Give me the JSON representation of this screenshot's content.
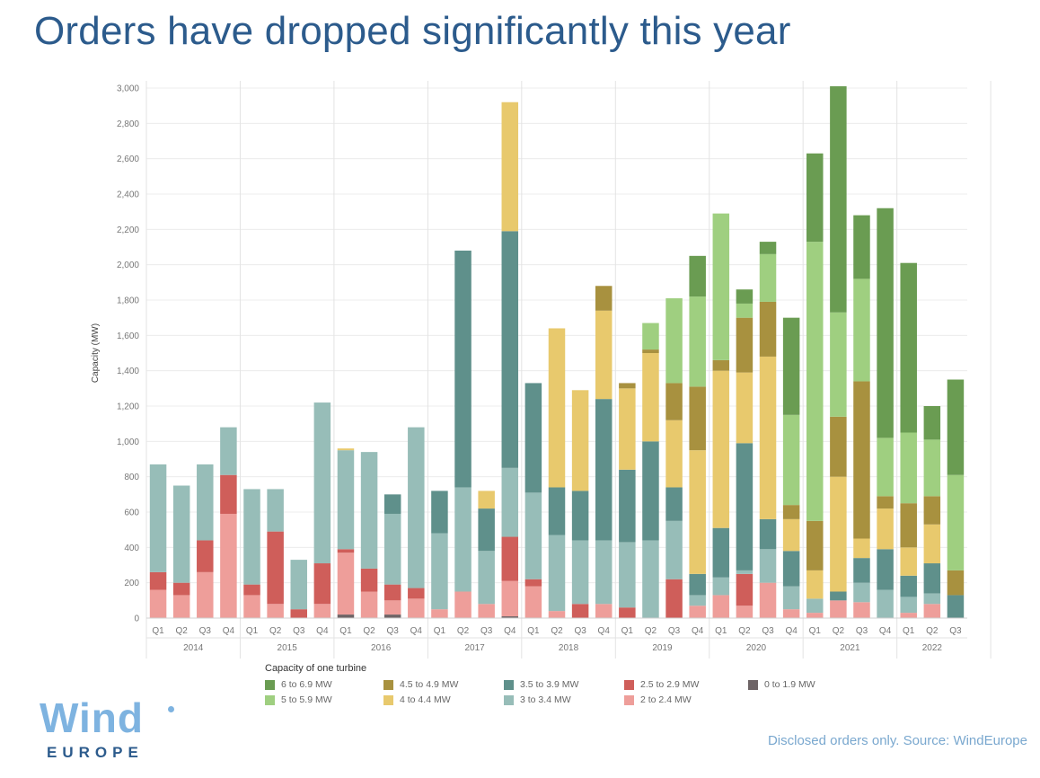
{
  "title": "Orders have dropped significantly this year",
  "legend": {
    "title": "Capacity of one turbine",
    "items": [
      {
        "label": "6 to 6.9 MW",
        "color": "#6a9c52"
      },
      {
        "label": "4.5 to 4.9 MW",
        "color": "#a8913f"
      },
      {
        "label": "3.5 to 3.9 MW",
        "color": "#5f908b"
      },
      {
        "label": "2.5 to 2.9 MW",
        "color": "#cf5e5a"
      },
      {
        "label": "0 to 1.9 MW",
        "color": "#6e6466"
      },
      {
        "label": "5 to 5.9 MW",
        "color": "#9fcf80"
      },
      {
        "label": "4 to 4.4 MW",
        "color": "#e8c96d"
      },
      {
        "label": "3 to 3.4 MW",
        "color": "#97bdb8"
      },
      {
        "label": "2 to 2.4 MW",
        "color": "#ee9e9a"
      }
    ]
  },
  "logo": {
    "word": "Wind",
    "sub": "EUROPE"
  },
  "source_note": "Disclosed orders only. Source: WindEurope",
  "chart_data": {
    "type": "bar",
    "stacked": true,
    "ylabel": "Capacity (MW)",
    "ylim": [
      0,
      3000
    ],
    "yticks": [
      "0",
      "200",
      "400",
      "600",
      "800",
      "1,000",
      "1,200",
      "1,400",
      "1,600",
      "1,800",
      "2,000",
      "2,200",
      "2,400",
      "2,600",
      "2,800",
      "3,000"
    ],
    "years": [
      "2014",
      "2015",
      "2016",
      "2017",
      "2018",
      "2019",
      "2020",
      "2021",
      "2022"
    ],
    "categories": [
      "Q1",
      "Q2",
      "Q3",
      "Q4",
      "Q1",
      "Q2",
      "Q3",
      "Q4",
      "Q1",
      "Q2",
      "Q3",
      "Q4",
      "Q1",
      "Q2",
      "Q3",
      "Q4",
      "Q1",
      "Q2",
      "Q3",
      "Q4",
      "Q1",
      "Q2",
      "Q3",
      "Q4",
      "Q1",
      "Q2",
      "Q3",
      "Q4",
      "Q1",
      "Q2",
      "Q3",
      "Q4",
      "Q1",
      "Q2",
      "Q3"
    ],
    "series": [
      {
        "name": "0 to 1.9 MW",
        "color": "#6e6466",
        "values": [
          0,
          0,
          0,
          0,
          0,
          0,
          0,
          0,
          20,
          0,
          20,
          0,
          0,
          0,
          0,
          10,
          0,
          0,
          0,
          0,
          0,
          0,
          0,
          0,
          0,
          0,
          0,
          0,
          0,
          0,
          0,
          0,
          0,
          0,
          0
        ]
      },
      {
        "name": "2 to 2.4 MW",
        "color": "#ee9e9a",
        "values": [
          160,
          130,
          260,
          590,
          130,
          80,
          0,
          80,
          350,
          150,
          80,
          110,
          50,
          150,
          80,
          200,
          180,
          40,
          0,
          80,
          0,
          0,
          0,
          70,
          130,
          70,
          200,
          50,
          30,
          100,
          90,
          0,
          30,
          80,
          0
        ]
      },
      {
        "name": "2.5 to 2.9 MW",
        "color": "#cf5e5a",
        "values": [
          100,
          70,
          180,
          220,
          60,
          410,
          50,
          230,
          20,
          130,
          90,
          60,
          0,
          0,
          0,
          250,
          40,
          0,
          80,
          0,
          60,
          0,
          220,
          0,
          0,
          180,
          0,
          0,
          0,
          0,
          0,
          0,
          0,
          0,
          0
        ]
      },
      {
        "name": "3 to 3.4 MW",
        "color": "#97bdb8",
        "values": [
          610,
          550,
          430,
          270,
          540,
          240,
          280,
          910,
          560,
          660,
          400,
          910,
          430,
          590,
          300,
          390,
          490,
          430,
          360,
          360,
          370,
          440,
          330,
          60,
          100,
          20,
          190,
          130,
          80,
          0,
          110,
          160,
          90,
          60,
          0
        ]
      },
      {
        "name": "3.5 to 3.9 MW",
        "color": "#5f908b",
        "values": [
          0,
          0,
          0,
          0,
          0,
          0,
          0,
          0,
          0,
          0,
          110,
          0,
          240,
          1340,
          240,
          1340,
          620,
          270,
          280,
          800,
          410,
          560,
          190,
          120,
          280,
          720,
          170,
          200,
          0,
          50,
          140,
          230,
          120,
          170,
          130
        ]
      },
      {
        "name": "4 to 4.4 MW",
        "color": "#e8c96d",
        "values": [
          0,
          0,
          0,
          0,
          0,
          0,
          0,
          0,
          10,
          0,
          0,
          0,
          0,
          0,
          100,
          730,
          0,
          900,
          570,
          500,
          460,
          500,
          380,
          700,
          890,
          400,
          920,
          180,
          160,
          650,
          110,
          230,
          160,
          220,
          0
        ]
      },
      {
        "name": "4.5 to 4.9 MW",
        "color": "#a8913f",
        "values": [
          0,
          0,
          0,
          0,
          0,
          0,
          0,
          0,
          0,
          0,
          0,
          0,
          0,
          0,
          0,
          0,
          0,
          0,
          0,
          140,
          30,
          20,
          210,
          360,
          60,
          310,
          310,
          80,
          280,
          340,
          890,
          70,
          250,
          160,
          140
        ]
      },
      {
        "name": "5 to 5.9 MW",
        "color": "#9fcf80",
        "values": [
          0,
          0,
          0,
          0,
          0,
          0,
          0,
          0,
          0,
          0,
          0,
          0,
          0,
          0,
          0,
          0,
          0,
          0,
          0,
          0,
          0,
          150,
          480,
          510,
          830,
          80,
          270,
          510,
          1580,
          590,
          580,
          330,
          400,
          320,
          540
        ]
      },
      {
        "name": "6 to 6.9 MW",
        "color": "#6a9c52",
        "values": [
          0,
          0,
          0,
          0,
          0,
          0,
          0,
          0,
          0,
          0,
          0,
          0,
          0,
          0,
          0,
          0,
          0,
          0,
          0,
          0,
          0,
          0,
          0,
          230,
          0,
          80,
          70,
          550,
          500,
          1280,
          360,
          1300,
          960,
          190,
          540
        ]
      }
    ]
  }
}
